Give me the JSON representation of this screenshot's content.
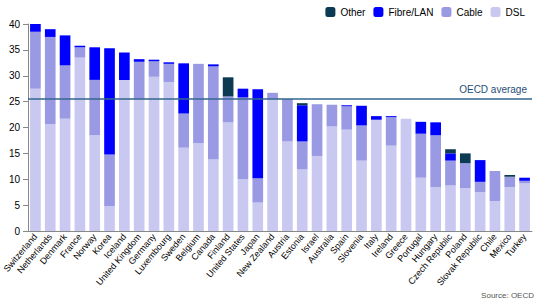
{
  "chart_data": {
    "type": "bar",
    "stacked": true,
    "grid": false,
    "legend": "top-right",
    "categories": [
      "Switzerland",
      "Netherlands",
      "Denmark",
      "France",
      "Norway",
      "Korea",
      "Iceland",
      "United Kingdom",
      "Germany",
      "Luxembourg",
      "Sweden",
      "Belgium",
      "Canada",
      "Finland",
      "United States",
      "Japan",
      "New Zealand",
      "Austria",
      "Estonia",
      "Israel",
      "Australia",
      "Spain",
      "Slovenia",
      "Italy",
      "Ireland",
      "Greece",
      "Portugal",
      "Hungary",
      "Czech Republic",
      "Poland",
      "Slovak Republic",
      "Chile",
      "Mexico",
      "Turkey"
    ],
    "series": [
      {
        "name": "DSL",
        "color": "#c8c8f0",
        "values": [
          27.5,
          20.7,
          21.7,
          33.5,
          18.5,
          4.8,
          29.2,
          25.5,
          29.8,
          28.8,
          16.1,
          17,
          13.8,
          21,
          10,
          5.5,
          25.5,
          17.3,
          11.9,
          14.5,
          20.2,
          19.6,
          13.6,
          21.5,
          16.5,
          21.7,
          10.3,
          8.5,
          8.8,
          8.3,
          7.5,
          5.8,
          8.5,
          9.2
        ]
      },
      {
        "name": "Cable",
        "color": "#9a9ae4",
        "values": [
          11,
          16.8,
          10.3,
          2,
          10.7,
          10,
          0,
          7.2,
          3,
          3.5,
          6.6,
          15.3,
          18,
          5,
          15.8,
          4.7,
          1.2,
          8.2,
          5.4,
          10,
          4.2,
          4.5,
          6.8,
          0,
          5.5,
          0,
          8.5,
          10,
          4.8,
          4.8,
          2,
          5.8,
          2,
          0.5
        ]
      },
      {
        "name": "Fibre/LAN",
        "color": "#0000ff",
        "values": [
          1.5,
          1.5,
          5.8,
          0.3,
          6.3,
          20.5,
          5.3,
          0.5,
          0.3,
          0.3,
          9.7,
          0,
          0.4,
          0,
          1.7,
          17.2,
          0,
          0,
          7,
          0,
          0,
          0.2,
          3.8,
          0.7,
          0.2,
          0,
          2.3,
          2.5,
          1.4,
          0,
          4.2,
          0,
          0,
          0.6
        ]
      },
      {
        "name": "Other",
        "color": "#0b3a52",
        "values": [
          0,
          0,
          0,
          0,
          0,
          0,
          0,
          0,
          0,
          0,
          0,
          0,
          0,
          3.7,
          0,
          0,
          0,
          0,
          0.4,
          0,
          0,
          0,
          0,
          0,
          0,
          0,
          0,
          0,
          0.8,
          1.9,
          0,
          0,
          0.3,
          0
        ]
      }
    ],
    "ylim": [
      0,
      40
    ],
    "yticks": [
      0,
      5,
      10,
      15,
      20,
      25,
      30,
      35,
      40
    ],
    "annotations": [
      {
        "text": "OECD average",
        "y": 25.5
      },
      {
        "text": "Source: OECD"
      }
    ]
  }
}
